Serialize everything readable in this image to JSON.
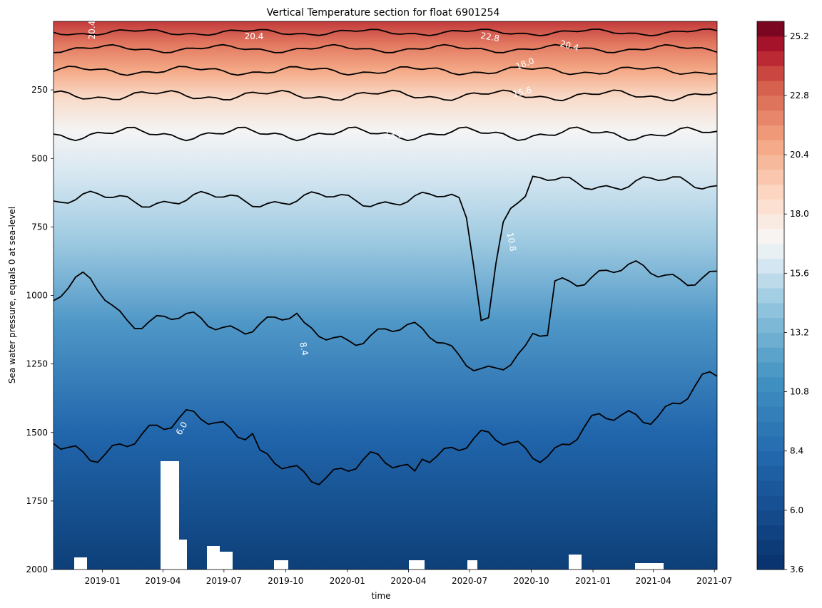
{
  "chart_data": {
    "type": "heatmap",
    "title": "Vertical Temperature section for float 6901254",
    "xlabel": "time",
    "ylabel": "Sea water pressure, equals 0 at sea-level",
    "x_ticks": [
      "2019-01",
      "2019-04",
      "2019-07",
      "2019-10",
      "2020-01",
      "2020-04",
      "2020-07",
      "2020-10",
      "2021-01",
      "2021-04",
      "2021-07"
    ],
    "y_ticks": [
      250,
      500,
      750,
      1000,
      1250,
      1500,
      1750,
      2000
    ],
    "ylim": [
      0,
      2000
    ],
    "y_inverted": true,
    "xlim": [
      "2018-10-20",
      "2021-07-05"
    ],
    "colormap": "RdBu_r",
    "colorbar": {
      "range": [
        3.6,
        25.8
      ],
      "ticks": [
        "3.6",
        "6.0",
        "8.4",
        "10.8",
        "13.2",
        "15.6",
        "18.0",
        "20.4",
        "22.8",
        "25.2"
      ],
      "levels": 37
    },
    "contour_levels": [
      6.0,
      8.4,
      10.8,
      13.2,
      15.6,
      18.0,
      20.4,
      22.8
    ],
    "contour_labels": [
      "20.4",
      "20.4",
      "22.8",
      "20.4",
      "18.0",
      "15.6",
      "13.2",
      "10.8",
      "8.4",
      "6.0"
    ],
    "isotherm_depths": [
      {
        "temp": 22.8,
        "mean_pressure": 40
      },
      {
        "temp": 20.4,
        "mean_pressure": 100
      },
      {
        "temp": 18.0,
        "mean_pressure": 180
      },
      {
        "temp": 15.6,
        "mean_pressure": 270
      },
      {
        "temp": 13.2,
        "mean_pressure": 410
      },
      {
        "temp": 10.8,
        "mean_pressure": 650
      },
      {
        "temp": 8.4,
        "mean_pressure": 1100
      },
      {
        "temp": 6.0,
        "mean_pressure": 1550
      }
    ],
    "grid": false,
    "legend": "colorbar-right"
  }
}
